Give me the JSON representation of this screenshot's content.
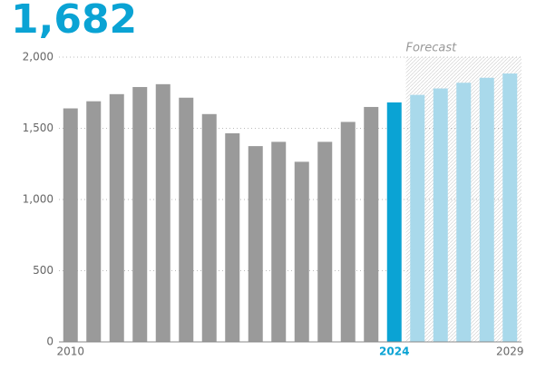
{
  "chart_data": {
    "type": "bar",
    "title": "1,682",
    "annotation": "Forecast",
    "categories": [
      "2010",
      null,
      null,
      null,
      null,
      null,
      null,
      null,
      null,
      null,
      null,
      null,
      null,
      null,
      "2024",
      null,
      null,
      null,
      null,
      "2029"
    ],
    "values": [
      1640,
      1690,
      1740,
      1790,
      1810,
      1715,
      1600,
      1465,
      1375,
      1405,
      1265,
      1405,
      1545,
      1650,
      1682,
      1735,
      1780,
      1820,
      1855,
      1885
    ],
    "colors": [
      "#9a9a9a",
      "#9a9a9a",
      "#9a9a9a",
      "#9a9a9a",
      "#9a9a9a",
      "#9a9a9a",
      "#9a9a9a",
      "#9a9a9a",
      "#9a9a9a",
      "#9a9a9a",
      "#9a9a9a",
      "#9a9a9a",
      "#9a9a9a",
      "#9a9a9a",
      "#0aa3d4",
      "#a9d9eb",
      "#a9d9eb",
      "#a9d9eb",
      "#a9d9eb",
      "#a9d9eb"
    ],
    "ylim": [
      0,
      2000
    ],
    "yticks": [
      0,
      500,
      {
        "value": 1000,
        "label": "1,000"
      },
      {
        "value": 1500,
        "label": "1,500"
      },
      {
        "value": 2000,
        "label": "2,000"
      }
    ],
    "grid": true
  }
}
